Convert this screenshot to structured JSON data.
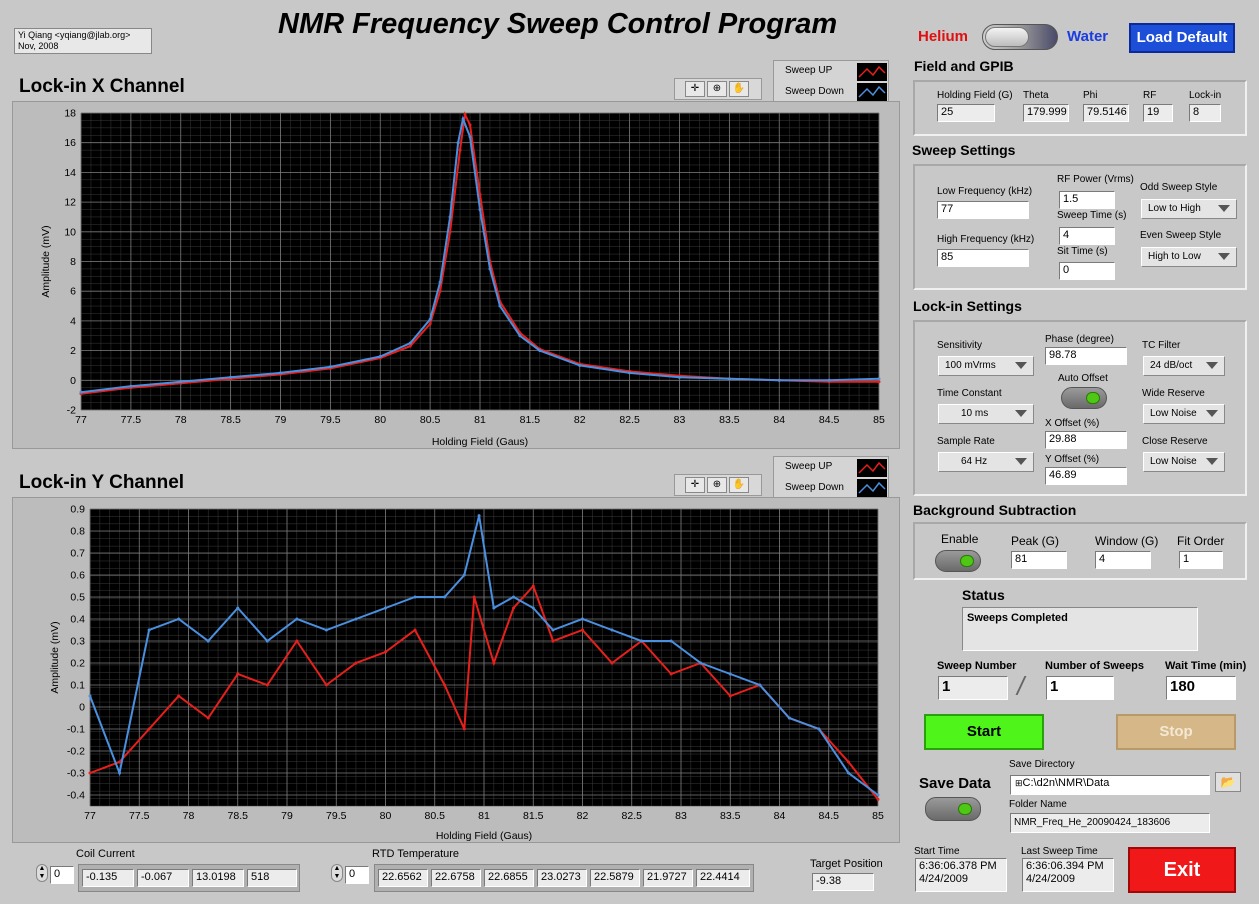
{
  "credit": {
    "author": "Yi Qiang <yqiang@jlab.org>",
    "date": "Nov, 2008"
  },
  "app_title": "NMR Frequency Sweep Control Program",
  "mode_toggle": {
    "left": "Helium",
    "right": "Water"
  },
  "load_default_label": "Load Default",
  "field_gpib": {
    "title": "Field and GPIB",
    "holding_field_label": "Holding Field (G)",
    "holding_field": "25",
    "theta_label": "Theta",
    "theta": "179.999",
    "phi_label": "Phi",
    "phi": "79.5146",
    "rf_label": "RF",
    "rf": "19",
    "lockin_label": "Lock-in",
    "lockin": "8"
  },
  "sweep": {
    "title": "Sweep Settings",
    "low_freq_label": "Low Frequency (kHz)",
    "low_freq": "77",
    "high_freq_label": "High Frequency (kHz)",
    "high_freq": "85",
    "rf_power_label": "RF Power (Vrms)",
    "rf_power": "1.5",
    "sweep_time_label": "Sweep Time (s)",
    "sweep_time": "4",
    "sit_time_label": "Sit Time (s)",
    "sit_time": "0",
    "odd_style_label": "Odd Sweep Style",
    "odd_style": "Low to High",
    "even_style_label": "Even Sweep Style",
    "even_style": "High to Low"
  },
  "lockin": {
    "title": "Lock-in Settings",
    "sensitivity_label": "Sensitivity",
    "sensitivity": "100 mVrms",
    "phase_label": "Phase (degree)",
    "phase": "98.78",
    "tc_filter_label": "TC Filter",
    "tc_filter": "24 dB/oct",
    "auto_offset_label": "Auto Offset",
    "time_constant_label": "Time Constant",
    "time_constant": "10 ms",
    "x_offset_label": "X Offset (%)",
    "x_offset": "29.88",
    "wide_reserve_label": "Wide Reserve",
    "wide_reserve": "Low Noise",
    "sample_rate_label": "Sample Rate",
    "sample_rate": "64 Hz",
    "y_offset_label": "Y Offset (%)",
    "y_offset": "46.89",
    "close_reserve_label": "Close Reserve",
    "close_reserve": "Low Noise"
  },
  "background": {
    "title": "Background Subtraction",
    "enable_label": "Enable",
    "peak_label": "Peak (G)",
    "peak": "81",
    "window_label": "Window (G)",
    "window": "4",
    "fit_order_label": "Fit Order",
    "fit_order": "1"
  },
  "status": {
    "title": "Status",
    "text": "Sweeps Completed"
  },
  "counts": {
    "sweep_number_label": "Sweep Number",
    "sweep_number": "1",
    "num_sweeps_label": "Number of Sweeps",
    "num_sweeps": "1",
    "wait_time_label": "Wait Time (min)",
    "wait_time": "180",
    "slash": "/"
  },
  "start_label": "Start",
  "stop_label": "Stop",
  "save": {
    "title": "Save Data",
    "dir_label": "Save Directory",
    "dir": "C:\\d2n\\NMR\\Data",
    "folder_label": "Folder Name",
    "folder": "NMR_Freq_He_20090424_183606"
  },
  "times": {
    "start_label": "Start Time",
    "start_time": "6:36:06.378 PM",
    "start_date": "4/24/2009",
    "last_label": "Last Sweep Time",
    "last_time": "6:36:06.394 PM",
    "last_date": "4/24/2009"
  },
  "exit_label": "Exit",
  "coil": {
    "label": "Coil Current",
    "index": "0",
    "values": [
      "-0.135",
      "-0.067",
      "13.0198",
      "518"
    ]
  },
  "rtd": {
    "label": "RTD Temperature",
    "index": "0",
    "values": [
      "22.6562",
      "22.6758",
      "22.6855",
      "23.0273",
      "22.5879",
      "21.9727",
      "22.4414"
    ]
  },
  "target": {
    "label": "Target Position",
    "value": "-9.38"
  },
  "legend": {
    "up": "Sweep UP",
    "down": "Sweep Down"
  },
  "colors": {
    "up": "#e8201c",
    "down": "#4a90e0",
    "helium": "#e01010",
    "water": "#1a3ce0"
  },
  "chart_data": [
    {
      "type": "line",
      "title": "Lock-in X Channel",
      "xlabel": "Holding Field (Gaus)",
      "ylabel": "Amplitude (mV)",
      "xlim": [
        77,
        85
      ],
      "ylim": [
        -2,
        18
      ],
      "xticks": [
        "77",
        "77.5",
        "78",
        "78.5",
        "79",
        "79.5",
        "80",
        "80.5",
        "81",
        "81.5",
        "82",
        "82.5",
        "83",
        "83.5",
        "84",
        "84.5",
        "85"
      ],
      "yticks": [
        "-2",
        "0",
        "2",
        "4",
        "6",
        "8",
        "10",
        "12",
        "14",
        "16",
        "18"
      ],
      "grid": true,
      "series": [
        {
          "name": "Sweep UP",
          "x": [
            77,
            77.5,
            78,
            78.5,
            79,
            79.5,
            80,
            80.3,
            80.5,
            80.6,
            80.7,
            80.8,
            80.85,
            80.9,
            81,
            81.1,
            81.2,
            81.4,
            81.6,
            82,
            82.5,
            83,
            83.5,
            84,
            84.5,
            85
          ],
          "y": [
            -0.9,
            -0.5,
            -0.2,
            0.1,
            0.4,
            0.8,
            1.5,
            2.3,
            3.8,
            6,
            10,
            15.5,
            17.9,
            17.2,
            12.5,
            8,
            5.3,
            3.2,
            2.1,
            1.1,
            0.6,
            0.3,
            0.1,
            0,
            -0.1,
            -0.1
          ]
        },
        {
          "name": "Sweep Down",
          "x": [
            77,
            77.5,
            78,
            78.5,
            79,
            79.5,
            80,
            80.3,
            80.5,
            80.6,
            80.7,
            80.78,
            80.83,
            80.9,
            81,
            81.1,
            81.2,
            81.4,
            81.6,
            82,
            82.5,
            83,
            83.5,
            84,
            84.5,
            85
          ],
          "y": [
            -0.8,
            -0.4,
            -0.1,
            0.2,
            0.5,
            0.9,
            1.6,
            2.5,
            4.1,
            6.6,
            11,
            16,
            17.6,
            16.4,
            11.5,
            7.5,
            5,
            3,
            2,
            1,
            0.5,
            0.2,
            0.1,
            0,
            0,
            0.1
          ]
        }
      ]
    },
    {
      "type": "line",
      "title": "Lock-in Y Channel",
      "xlabel": "Holding Field (Gaus)",
      "ylabel": "Amplitude (mV)",
      "xlim": [
        77,
        85
      ],
      "ylim": [
        -0.45,
        0.9
      ],
      "xticks": [
        "77",
        "77.5",
        "78",
        "78.5",
        "79",
        "79.5",
        "80",
        "80.5",
        "81",
        "81.5",
        "82",
        "82.5",
        "83",
        "83.5",
        "84",
        "84.5",
        "85"
      ],
      "yticks": [
        "-0.4",
        "-0.3",
        "-0.2",
        "-0.1",
        "0",
        "0.1",
        "0.2",
        "0.3",
        "0.4",
        "0.5",
        "0.6",
        "0.7",
        "0.8",
        "0.9"
      ],
      "grid": true,
      "series": [
        {
          "name": "Sweep UP",
          "x": [
            77,
            77.3,
            77.6,
            77.9,
            78.2,
            78.5,
            78.8,
            79.1,
            79.4,
            79.7,
            80,
            80.3,
            80.6,
            80.8,
            80.9,
            81.1,
            81.3,
            81.5,
            81.7,
            82,
            82.3,
            82.6,
            82.9,
            83.2,
            83.5,
            83.8,
            84.1,
            84.4,
            84.7,
            85
          ],
          "y": [
            -0.3,
            -0.25,
            -0.1,
            0.05,
            -0.05,
            0.15,
            0.1,
            0.3,
            0.1,
            0.2,
            0.25,
            0.35,
            0.1,
            -0.1,
            0.5,
            0.2,
            0.45,
            0.55,
            0.3,
            0.35,
            0.2,
            0.3,
            0.15,
            0.2,
            0.05,
            0.1,
            -0.05,
            -0.1,
            -0.25,
            -0.42
          ]
        },
        {
          "name": "Sweep Down",
          "x": [
            77,
            77.3,
            77.6,
            77.9,
            78.2,
            78.5,
            78.8,
            79.1,
            79.4,
            79.7,
            80,
            80.3,
            80.6,
            80.8,
            80.95,
            81.1,
            81.3,
            81.5,
            81.7,
            82,
            82.3,
            82.6,
            82.9,
            83.2,
            83.5,
            83.8,
            84.1,
            84.4,
            84.7,
            85
          ],
          "y": [
            0.05,
            -0.3,
            0.35,
            0.4,
            0.3,
            0.45,
            0.3,
            0.4,
            0.35,
            0.4,
            0.45,
            0.5,
            0.5,
            0.6,
            0.87,
            0.45,
            0.5,
            0.45,
            0.35,
            0.4,
            0.35,
            0.3,
            0.3,
            0.2,
            0.15,
            0.1,
            -0.05,
            -0.1,
            -0.3,
            -0.4
          ]
        }
      ]
    }
  ]
}
